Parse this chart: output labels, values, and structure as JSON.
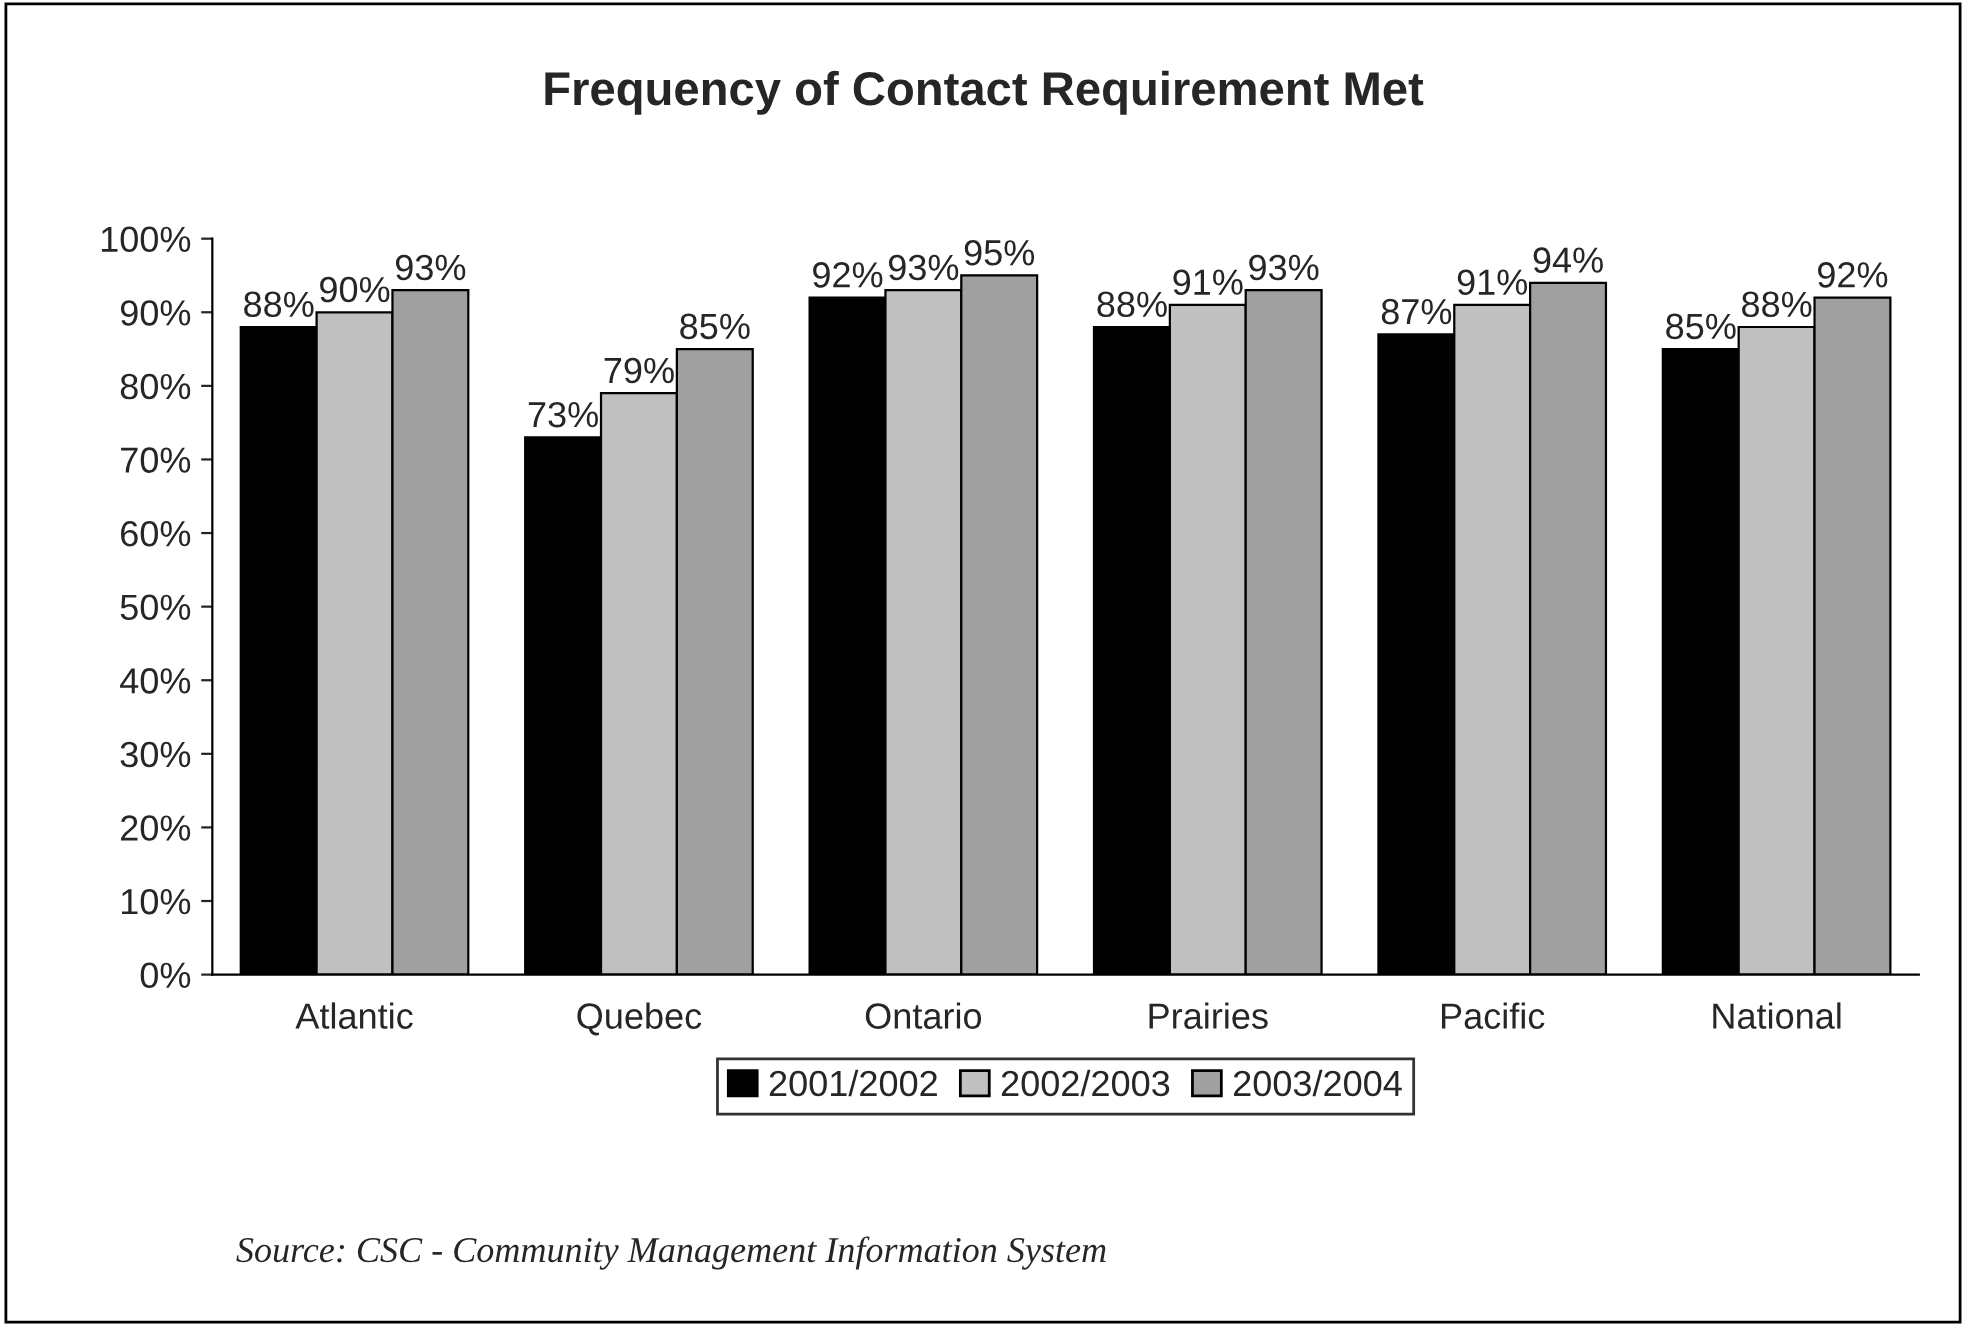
{
  "chart_data": {
    "type": "bar",
    "title": "Frequency of Contact Requirement Met",
    "categories": [
      "Atlantic",
      "Quebec",
      "Ontario",
      "Prairies",
      "Pacific",
      "National"
    ],
    "series": [
      {
        "name": "2001/2002",
        "color": "#000000",
        "values": [
          88,
          73,
          92,
          88,
          87,
          85
        ],
        "value_labels": [
          "88%",
          "73%",
          "92%",
          "88%",
          "87%",
          "85%"
        ]
      },
      {
        "name": "2002/2003",
        "color": "#c0c0c0",
        "values": [
          90,
          79,
          93,
          91,
          91,
          88
        ],
        "value_labels": [
          "90%",
          "79%",
          "93%",
          "91%",
          "91%",
          "88%"
        ]
      },
      {
        "name": "2003/2004",
        "color": "#a0a0a0",
        "values": [
          93,
          85,
          95,
          93,
          94,
          92
        ],
        "value_labels": [
          "93%",
          "85%",
          "95%",
          "93%",
          "94%",
          "92%"
        ]
      }
    ],
    "ylim": [
      0,
      100
    ],
    "yticks": [
      {
        "value": 0,
        "label": "0%"
      },
      {
        "value": 10,
        "label": "10%"
      },
      {
        "value": 20,
        "label": "20%"
      },
      {
        "value": 30,
        "label": "30%"
      },
      {
        "value": 40,
        "label": "40%"
      },
      {
        "value": 50,
        "label": "50%"
      },
      {
        "value": 60,
        "label": "60%"
      },
      {
        "value": 70,
        "label": "70%"
      },
      {
        "value": 80,
        "label": "80%"
      },
      {
        "value": 90,
        "label": "90%"
      },
      {
        "value": 100,
        "label": "100%"
      }
    ],
    "grid": false,
    "legend": "bottom",
    "annotations": [
      "Source: CSC - Community Management Information System"
    ]
  }
}
